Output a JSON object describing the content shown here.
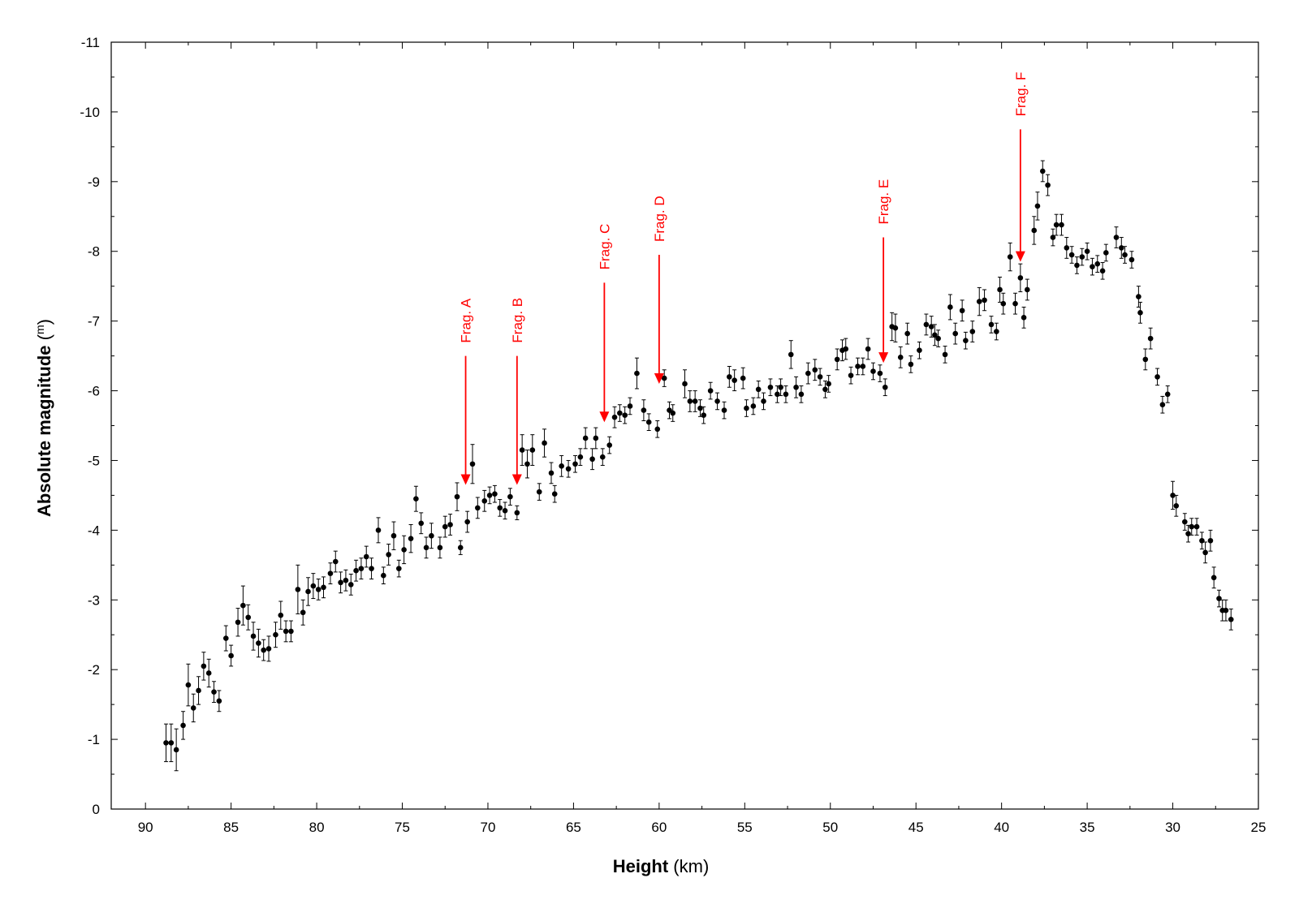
{
  "chart_data": {
    "type": "scatter",
    "title": "",
    "xlabel": "Height",
    "xunit": "(km)",
    "ylabel": "Absolute magnitude",
    "yunit": "m",
    "xlim": [
      92,
      25
    ],
    "ylim": [
      0,
      -11
    ],
    "x_reversed": true,
    "y_reversed": true,
    "grid": false,
    "xticks": [
      90,
      85,
      80,
      75,
      70,
      65,
      60,
      55,
      50,
      45,
      40,
      35,
      30,
      25
    ],
    "yticks": [
      0,
      -1,
      -2,
      -3,
      -4,
      -5,
      -6,
      -7,
      -8,
      -9,
      -10,
      -11
    ],
    "colors": {
      "points": "#000000",
      "annotations": "#ff0000"
    },
    "annotations": [
      {
        "label": "Frag. A",
        "x": 71.3,
        "y_top": -6.5,
        "y_tip": -4.65
      },
      {
        "label": "Frag. B",
        "x": 68.3,
        "y_top": -6.5,
        "y_tip": -4.65
      },
      {
        "label": "Frag. C",
        "x": 63.2,
        "y_top": -7.55,
        "y_tip": -5.55
      },
      {
        "label": "Frag. D",
        "x": 60.0,
        "y_top": -7.95,
        "y_tip": -6.1
      },
      {
        "label": "Frag. E",
        "x": 46.9,
        "y_top": -8.2,
        "y_tip": -6.4
      },
      {
        "label": "Frag. F",
        "x": 38.9,
        "y_top": -9.75,
        "y_tip": -7.85
      }
    ],
    "series": [
      {
        "points": [
          [
            88.8,
            -0.95,
            0.27
          ],
          [
            88.5,
            -0.95,
            0.27
          ],
          [
            88.2,
            -0.85,
            0.3
          ],
          [
            87.8,
            -1.2,
            0.2
          ],
          [
            87.5,
            -1.78,
            0.3
          ],
          [
            87.2,
            -1.45,
            0.2
          ],
          [
            86.9,
            -1.7,
            0.2
          ],
          [
            86.6,
            -2.05,
            0.2
          ],
          [
            86.3,
            -1.95,
            0.2
          ],
          [
            86.0,
            -1.68,
            0.15
          ],
          [
            85.7,
            -1.55,
            0.15
          ],
          [
            85.3,
            -2.45,
            0.18
          ],
          [
            85.0,
            -2.2,
            0.15
          ],
          [
            84.6,
            -2.68,
            0.2
          ],
          [
            84.3,
            -2.92,
            0.28
          ],
          [
            84.0,
            -2.75,
            0.18
          ],
          [
            83.7,
            -2.48,
            0.2
          ],
          [
            83.4,
            -2.38,
            0.2
          ],
          [
            83.1,
            -2.28,
            0.15
          ],
          [
            82.8,
            -2.3,
            0.18
          ],
          [
            82.4,
            -2.5,
            0.18
          ],
          [
            82.1,
            -2.78,
            0.2
          ],
          [
            81.8,
            -2.55,
            0.15
          ],
          [
            81.5,
            -2.55,
            0.15
          ],
          [
            81.1,
            -3.15,
            0.35
          ],
          [
            80.8,
            -2.82,
            0.18
          ],
          [
            80.5,
            -3.12,
            0.2
          ],
          [
            80.2,
            -3.2,
            0.18
          ],
          [
            79.9,
            -3.15,
            0.15
          ],
          [
            79.6,
            -3.18,
            0.15
          ],
          [
            79.2,
            -3.38,
            0.15
          ],
          [
            78.9,
            -3.55,
            0.15
          ],
          [
            78.6,
            -3.25,
            0.15
          ],
          [
            78.3,
            -3.28,
            0.15
          ],
          [
            78.0,
            -3.22,
            0.15
          ],
          [
            77.7,
            -3.42,
            0.15
          ],
          [
            77.4,
            -3.45,
            0.15
          ],
          [
            77.1,
            -3.62,
            0.15
          ],
          [
            76.8,
            -3.45,
            0.15
          ],
          [
            76.4,
            -4.0,
            0.18
          ],
          [
            76.1,
            -3.35,
            0.12
          ],
          [
            75.8,
            -3.65,
            0.15
          ],
          [
            75.5,
            -3.92,
            0.2
          ],
          [
            75.2,
            -3.45,
            0.12
          ],
          [
            74.9,
            -3.72,
            0.2
          ],
          [
            74.5,
            -3.88,
            0.2
          ],
          [
            74.2,
            -4.45,
            0.18
          ],
          [
            73.9,
            -4.1,
            0.15
          ],
          [
            73.6,
            -3.75,
            0.15
          ],
          [
            73.3,
            -3.92,
            0.18
          ],
          [
            72.8,
            -3.75,
            0.15
          ],
          [
            72.5,
            -4.05,
            0.15
          ],
          [
            72.2,
            -4.08,
            0.15
          ],
          [
            71.8,
            -4.48,
            0.2
          ],
          [
            71.6,
            -3.75,
            0.1
          ],
          [
            71.2,
            -4.12,
            0.15
          ],
          [
            70.9,
            -4.95,
            0.28
          ],
          [
            70.6,
            -4.32,
            0.15
          ],
          [
            70.2,
            -4.42,
            0.15
          ],
          [
            69.9,
            -4.5,
            0.12
          ],
          [
            69.6,
            -4.52,
            0.12
          ],
          [
            69.3,
            -4.32,
            0.12
          ],
          [
            69.0,
            -4.28,
            0.12
          ],
          [
            68.7,
            -4.48,
            0.12
          ],
          [
            68.3,
            -4.25,
            0.1
          ],
          [
            68.0,
            -5.15,
            0.22
          ],
          [
            67.7,
            -4.95,
            0.2
          ],
          [
            67.4,
            -5.15,
            0.22
          ],
          [
            67.0,
            -4.55,
            0.12
          ],
          [
            66.7,
            -5.25,
            0.2
          ],
          [
            66.3,
            -4.82,
            0.15
          ],
          [
            66.1,
            -4.52,
            0.12
          ],
          [
            65.7,
            -4.92,
            0.15
          ],
          [
            65.3,
            -4.88,
            0.12
          ],
          [
            64.9,
            -4.95,
            0.12
          ],
          [
            64.6,
            -5.05,
            0.12
          ],
          [
            64.3,
            -5.32,
            0.15
          ],
          [
            63.9,
            -5.02,
            0.15
          ],
          [
            63.7,
            -5.32,
            0.15
          ],
          [
            63.3,
            -5.05,
            0.12
          ],
          [
            62.9,
            -5.22,
            0.12
          ],
          [
            62.6,
            -5.62,
            0.15
          ],
          [
            62.3,
            -5.68,
            0.12
          ],
          [
            62.0,
            -5.65,
            0.12
          ],
          [
            61.7,
            -5.78,
            0.12
          ],
          [
            61.3,
            -6.25,
            0.22
          ],
          [
            60.9,
            -5.72,
            0.15
          ],
          [
            60.6,
            -5.55,
            0.12
          ],
          [
            60.1,
            -5.45,
            0.12
          ],
          [
            59.7,
            -6.18,
            0.12
          ],
          [
            59.4,
            -5.72,
            0.12
          ],
          [
            59.2,
            -5.68,
            0.12
          ],
          [
            58.5,
            -6.1,
            0.2
          ],
          [
            58.2,
            -5.85,
            0.15
          ],
          [
            57.9,
            -5.85,
            0.15
          ],
          [
            57.6,
            -5.75,
            0.12
          ],
          [
            57.4,
            -5.65,
            0.12
          ],
          [
            57.0,
            -6.0,
            0.12
          ],
          [
            56.6,
            -5.85,
            0.12
          ],
          [
            56.2,
            -5.72,
            0.12
          ],
          [
            55.9,
            -6.2,
            0.15
          ],
          [
            55.6,
            -6.15,
            0.15
          ],
          [
            55.1,
            -6.18,
            0.15
          ],
          [
            54.9,
            -5.75,
            0.12
          ],
          [
            54.5,
            -5.78,
            0.12
          ],
          [
            54.2,
            -6.02,
            0.12
          ],
          [
            53.9,
            -5.85,
            0.12
          ],
          [
            53.5,
            -6.05,
            0.12
          ],
          [
            53.1,
            -5.95,
            0.12
          ],
          [
            52.9,
            -6.05,
            0.12
          ],
          [
            52.6,
            -5.95,
            0.12
          ],
          [
            52.3,
            -6.52,
            0.2
          ],
          [
            52.0,
            -6.05,
            0.15
          ],
          [
            51.7,
            -5.95,
            0.12
          ],
          [
            51.3,
            -6.25,
            0.15
          ],
          [
            50.9,
            -6.3,
            0.15
          ],
          [
            50.6,
            -6.2,
            0.12
          ],
          [
            50.3,
            -6.02,
            0.12
          ],
          [
            50.1,
            -6.1,
            0.12
          ],
          [
            49.6,
            -6.45,
            0.15
          ],
          [
            49.3,
            -6.58,
            0.15
          ],
          [
            49.1,
            -6.6,
            0.15
          ],
          [
            48.8,
            -6.22,
            0.12
          ],
          [
            48.4,
            -6.35,
            0.12
          ],
          [
            48.1,
            -6.35,
            0.12
          ],
          [
            47.8,
            -6.6,
            0.15
          ],
          [
            47.5,
            -6.28,
            0.12
          ],
          [
            47.1,
            -6.25,
            0.12
          ],
          [
            46.8,
            -6.05,
            0.12
          ],
          [
            46.4,
            -6.92,
            0.2
          ],
          [
            46.2,
            -6.9,
            0.2
          ],
          [
            45.9,
            -6.48,
            0.15
          ],
          [
            45.5,
            -6.82,
            0.15
          ],
          [
            45.3,
            -6.38,
            0.12
          ],
          [
            44.8,
            -6.58,
            0.12
          ],
          [
            44.4,
            -6.95,
            0.15
          ],
          [
            44.1,
            -6.92,
            0.15
          ],
          [
            43.9,
            -6.8,
            0.15
          ],
          [
            43.7,
            -6.75,
            0.12
          ],
          [
            43.3,
            -6.52,
            0.12
          ],
          [
            43.0,
            -7.2,
            0.18
          ],
          [
            42.7,
            -6.82,
            0.15
          ],
          [
            42.3,
            -7.15,
            0.15
          ],
          [
            42.1,
            -6.72,
            0.12
          ],
          [
            41.7,
            -6.85,
            0.15
          ],
          [
            41.3,
            -7.28,
            0.2
          ],
          [
            41.0,
            -7.3,
            0.15
          ],
          [
            40.6,
            -6.95,
            0.12
          ],
          [
            40.3,
            -6.85,
            0.12
          ],
          [
            40.1,
            -7.45,
            0.18
          ],
          [
            39.9,
            -7.25,
            0.15
          ],
          [
            39.5,
            -7.92,
            0.2
          ],
          [
            39.2,
            -7.25,
            0.15
          ],
          [
            38.9,
            -7.62,
            0.2
          ],
          [
            38.7,
            -7.05,
            0.15
          ],
          [
            38.5,
            -7.45,
            0.15
          ],
          [
            38.1,
            -8.3,
            0.2
          ],
          [
            37.9,
            -8.65,
            0.2
          ],
          [
            37.6,
            -9.15,
            0.15
          ],
          [
            37.3,
            -8.95,
            0.15
          ],
          [
            37.0,
            -8.2,
            0.12
          ],
          [
            36.8,
            -8.38,
            0.15
          ],
          [
            36.5,
            -8.38,
            0.15
          ],
          [
            36.2,
            -8.05,
            0.15
          ],
          [
            35.9,
            -7.95,
            0.12
          ],
          [
            35.6,
            -7.8,
            0.12
          ],
          [
            35.3,
            -7.92,
            0.12
          ],
          [
            35.0,
            -8.0,
            0.12
          ],
          [
            34.7,
            -7.78,
            0.12
          ],
          [
            34.4,
            -7.82,
            0.12
          ],
          [
            34.1,
            -7.72,
            0.12
          ],
          [
            33.9,
            -7.98,
            0.12
          ],
          [
            33.3,
            -8.2,
            0.15
          ],
          [
            33.0,
            -8.05,
            0.15
          ],
          [
            32.8,
            -7.95,
            0.12
          ],
          [
            32.4,
            -7.88,
            0.12
          ],
          [
            32.0,
            -7.35,
            0.15
          ],
          [
            31.9,
            -7.12,
            0.15
          ],
          [
            31.6,
            -6.45,
            0.15
          ],
          [
            31.3,
            -6.75,
            0.15
          ],
          [
            30.9,
            -6.2,
            0.12
          ],
          [
            30.6,
            -5.8,
            0.12
          ],
          [
            30.3,
            -5.95,
            0.12
          ],
          [
            30.0,
            -4.5,
            0.2
          ],
          [
            29.8,
            -4.35,
            0.15
          ],
          [
            29.3,
            -4.12,
            0.12
          ],
          [
            29.1,
            -3.95,
            0.12
          ],
          [
            28.9,
            -4.05,
            0.12
          ],
          [
            28.6,
            -4.05,
            0.12
          ],
          [
            28.3,
            -3.85,
            0.12
          ],
          [
            28.1,
            -3.68,
            0.15
          ],
          [
            27.8,
            -3.85,
            0.15
          ],
          [
            27.6,
            -3.32,
            0.15
          ],
          [
            27.3,
            -3.02,
            0.12
          ],
          [
            27.1,
            -2.85,
            0.15
          ],
          [
            26.9,
            -2.85,
            0.15
          ],
          [
            26.6,
            -2.72,
            0.15
          ]
        ]
      }
    ]
  }
}
